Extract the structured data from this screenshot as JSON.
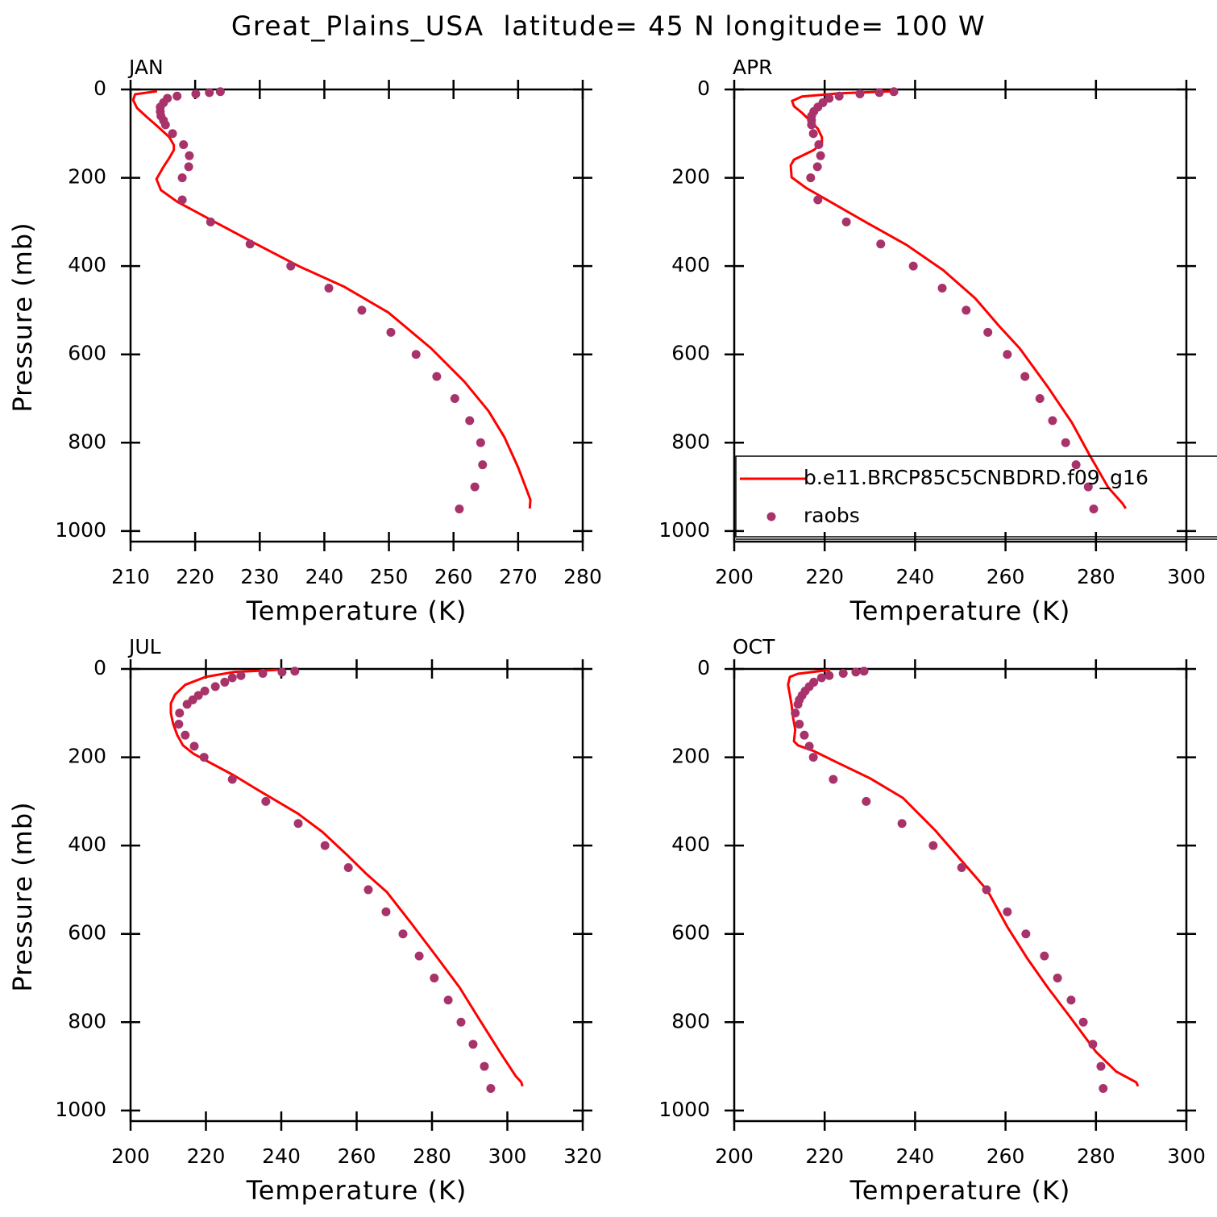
{
  "title": "Great_Plains_USA  latitude= 45 N longitude= 100 W",
  "chart_data": [
    {
      "type": "line",
      "title": "JAN",
      "xlabel": "Temperature (K)",
      "ylabel": "Pressure (mb)",
      "xlim": [
        210,
        280
      ],
      "xticks": [
        210,
        220,
        230,
        240,
        250,
        260,
        270,
        280
      ],
      "ylim": [
        1024,
        0
      ],
      "yticks": [
        0,
        200,
        400,
        600,
        800,
        1000
      ],
      "series": [
        {
          "type": "line",
          "color": "#ff0000",
          "x": [
            214.1,
            210.7,
            210.4,
            211.0,
            212.5,
            214.2,
            216.0,
            216.7,
            216.7,
            216.0,
            215.1,
            214.0,
            214.7,
            217.2,
            222.9,
            229.7,
            236.0,
            243.1,
            249.9,
            256.5,
            261.7,
            265.4,
            267.9,
            270.0,
            271.9,
            271.8
          ],
          "values": [
            4,
            11,
            24,
            42,
            62,
            84,
            108,
            126,
            137,
            155,
            175,
            203,
            228,
            254,
            299,
            352,
            400,
            447,
            505,
            586,
            662,
            728,
            788,
            856,
            929,
            949
          ]
        },
        {
          "type": "scatter",
          "color": "#a8336a",
          "x": [
            223.9,
            222.2,
            220.1,
            217.2,
            215.7,
            215.1,
            214.6,
            214.6,
            214.7,
            215.1,
            215.4,
            216.5,
            218.2,
            219.1,
            219.0,
            218.0,
            218.0,
            222.4,
            228.5,
            234.8,
            240.7,
            245.8,
            250.3,
            254.2,
            257.4,
            260.2,
            262.5,
            264.2,
            264.5,
            263.3,
            260.9
          ],
          "values": [
            5,
            7,
            10,
            15,
            20,
            30,
            40,
            50,
            60,
            70,
            80,
            100,
            125,
            150,
            175,
            200,
            250,
            300,
            350,
            400,
            450,
            500,
            550,
            600,
            650,
            700,
            750,
            800,
            850,
            900,
            950
          ]
        }
      ]
    },
    {
      "type": "line",
      "title": "APR",
      "xlabel": "Temperature (K)",
      "legend": "lower right",
      "xlim": [
        200,
        300
      ],
      "xticks": [
        200,
        220,
        240,
        260,
        280,
        300
      ],
      "ylim": [
        1024,
        0
      ],
      "yticks": [
        0,
        200,
        400,
        600,
        800,
        1000
      ],
      "series": [
        {
          "type": "line",
          "name": "b.e11.BRCP85C5CNBDRD.f09_g16",
          "color": "#ff0000",
          "x": [
            235.1,
            223.0,
            215.0,
            212.8,
            213.2,
            215.0,
            216.8,
            218.5,
            219.4,
            219.4,
            217.6,
            213.2,
            212.5,
            212.7,
            215.9,
            221.2,
            229.2,
            238.1,
            246.2,
            253.3,
            258.6,
            263.1,
            269.3,
            274.7,
            278.6,
            282.7,
            285.9,
            286.6
          ],
          "values": [
            4,
            9,
            16,
            26,
            38,
            53,
            71,
            89,
            108,
            122,
            137,
            159,
            172,
            199,
            223,
            254,
            301,
            352,
            409,
            473,
            536,
            586,
            673,
            755,
            828,
            901,
            938,
            949
          ]
        },
        {
          "type": "scatter",
          "name": "raobs",
          "color": "#a8336a",
          "x": [
            235.3,
            232.1,
            227.8,
            223.2,
            221.0,
            219.6,
            218.5,
            217.6,
            217.1,
            217.1,
            217.1,
            217.5,
            218.7,
            219.1,
            218.4,
            216.9,
            218.5,
            224.8,
            232.4,
            239.6,
            246.0,
            251.3,
            256.1,
            260.4,
            264.3,
            267.6,
            270.4,
            273.3,
            275.6,
            278.3,
            279.5
          ],
          "values": [
            5,
            7,
            10,
            15,
            20,
            30,
            40,
            50,
            60,
            70,
            80,
            100,
            125,
            150,
            175,
            200,
            250,
            300,
            350,
            400,
            450,
            500,
            550,
            600,
            650,
            700,
            750,
            800,
            850,
            900,
            950
          ]
        }
      ]
    },
    {
      "type": "line",
      "title": "JUL",
      "xlabel": "Temperature (K)",
      "ylabel": "Pressure (mb)",
      "xlim": [
        200,
        320
      ],
      "xticks": [
        200,
        220,
        240,
        260,
        280,
        300,
        320
      ],
      "ylim": [
        1024,
        0
      ],
      "yticks": [
        0,
        200,
        400,
        600,
        800,
        1000
      ],
      "series": [
        {
          "type": "line",
          "color": "#ff0000",
          "x": [
            239.1,
            227.4,
            219.9,
            214.5,
            211.8,
            210.7,
            210.7,
            211.3,
            212.4,
            213.9,
            216.7,
            221.0,
            227.4,
            233.8,
            244.5,
            250.9,
            257.3,
            262.7,
            268.0,
            274.4,
            280.9,
            287.3,
            292.6,
            298.0,
            302.2,
            303.7,
            304.0
          ],
          "values": [
            2,
            7,
            18,
            36,
            58,
            78,
            100,
            124,
            150,
            173,
            192,
            212,
            241,
            274,
            328,
            369,
            420,
            465,
            505,
            575,
            648,
            721,
            794,
            867,
            922,
            936,
            945
          ]
        },
        {
          "type": "scatter",
          "color": "#a8336a",
          "x": [
            243.6,
            240.2,
            235.1,
            229.3,
            227.0,
            225.0,
            222.5,
            219.7,
            218.0,
            216.5,
            215.0,
            213.0,
            212.8,
            214.5,
            216.9,
            219.5,
            227.0,
            235.9,
            244.5,
            251.6,
            257.8,
            263.1,
            267.8,
            272.3,
            276.6,
            280.6,
            284.3,
            287.7,
            290.9,
            293.9,
            295.6
          ],
          "values": [
            5,
            7,
            10,
            15,
            20,
            30,
            40,
            50,
            60,
            70,
            80,
            100,
            125,
            150,
            175,
            200,
            250,
            300,
            350,
            400,
            450,
            500,
            550,
            600,
            650,
            700,
            750,
            800,
            850,
            900,
            950
          ]
        }
      ]
    },
    {
      "type": "line",
      "title": "OCT",
      "xlabel": "Temperature (K)",
      "xlim": [
        200,
        300
      ],
      "xticks": [
        200,
        220,
        240,
        260,
        280,
        300
      ],
      "ylim": [
        1024,
        0
      ],
      "yticks": [
        0,
        200,
        400,
        600,
        800,
        1000
      ],
      "series": [
        {
          "type": "line",
          "color": "#ff0000",
          "x": [
            221.2,
            214.1,
            212.3,
            211.9,
            212.3,
            212.7,
            213.0,
            213.5,
            213.2,
            214.1,
            217.6,
            223.0,
            230.1,
            237.3,
            244.4,
            250.6,
            256.0,
            260.4,
            264.9,
            269.3,
            274.7,
            280.0,
            284.5,
            288.9,
            289.3
          ],
          "values": [
            2,
            11,
            18,
            36,
            58,
            82,
            109,
            137,
            164,
            173,
            186,
            213,
            248,
            292,
            365,
            438,
            502,
            584,
            657,
            721,
            794,
            867,
            912,
            936,
            945
          ]
        },
        {
          "type": "scatter",
          "color": "#a8336a",
          "x": [
            228.7,
            226.9,
            224.1,
            221.0,
            219.3,
            217.6,
            216.6,
            215.7,
            215.0,
            214.4,
            214.1,
            213.5,
            214.4,
            215.5,
            216.6,
            217.5,
            221.9,
            229.2,
            237.1,
            244.0,
            250.3,
            255.8,
            260.4,
            264.5,
            268.6,
            271.5,
            274.5,
            277.2,
            279.3,
            281.1,
            281.6
          ],
          "values": [
            5,
            7,
            10,
            15,
            20,
            30,
            40,
            50,
            60,
            70,
            80,
            100,
            125,
            150,
            175,
            200,
            250,
            300,
            350,
            400,
            450,
            500,
            550,
            600,
            650,
            700,
            750,
            800,
            850,
            900,
            950
          ]
        }
      ]
    }
  ]
}
